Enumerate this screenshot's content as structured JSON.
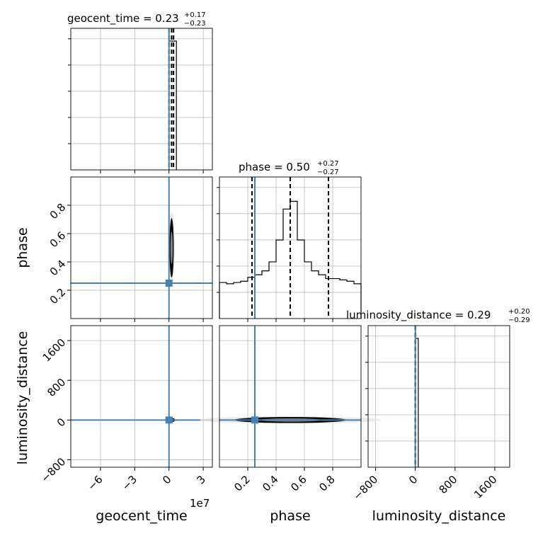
{
  "chart_data": {
    "type": "corner",
    "parameters": [
      "geocent_time",
      "phase",
      "luminosity_distance"
    ],
    "axis_labels": {
      "geocent_time": "geocent_time",
      "phase": "phase",
      "luminosity_distance": "luminosity_distance"
    },
    "offset_text": {
      "geocent_time": "1e7"
    },
    "titles": [
      {
        "param": "geocent_time",
        "prefix": "geocent_time = ",
        "median": "0.23",
        "plus": "+0.17",
        "minus": "−0.23"
      },
      {
        "param": "phase",
        "prefix": "phase = ",
        "median": "0.50",
        "plus": "+0.27",
        "minus": "−0.27"
      },
      {
        "param": "luminosity_distance",
        "prefix": "luminosity_distance = ",
        "median": "0.29",
        "plus": "+0.20",
        "minus": "−0.29"
      }
    ],
    "ranges": {
      "geocent_time": [
        -8.6,
        3.8
      ],
      "phase": [
        0.0,
        1.0
      ],
      "luminosity_distance": [
        -950,
        1900
      ]
    },
    "ticks": {
      "geocent_time": {
        "values": [
          -6,
          -3,
          0,
          3
        ],
        "labels": [
          "−6",
          "−3",
          "0",
          "3"
        ]
      },
      "phase": {
        "values": [
          0.2,
          0.4,
          0.6,
          0.8
        ],
        "labels": [
          "0.2",
          "0.4",
          "0.6",
          "0.8"
        ]
      },
      "luminosity_distance": {
        "values": [
          -800,
          0,
          800,
          1600
        ],
        "labels": [
          "−800",
          "0",
          "800",
          "1600"
        ]
      }
    },
    "truths": {
      "geocent_time": 0.0,
      "phase": 0.25,
      "luminosity_distance": 0.0
    },
    "quantiles": {
      "geocent_time": [
        0.0,
        0.23,
        0.4
      ],
      "phase": [
        0.23,
        0.5,
        0.77
      ],
      "luminosity_distance": [
        0.0,
        0.29,
        0.49
      ]
    },
    "histograms": {
      "geocent_time": {
        "edges": [
          0.0,
          0.65
        ],
        "counts": [
          1.0
        ]
      },
      "phase": {
        "edges": [
          0.0,
          0.05,
          0.1,
          0.15,
          0.2,
          0.25,
          0.3,
          0.35,
          0.4,
          0.45,
          0.5,
          0.55,
          0.6,
          0.65,
          0.7,
          0.75,
          0.8,
          0.85,
          0.9,
          0.95,
          1.0
        ],
        "counts": [
          0.28,
          0.27,
          0.28,
          0.29,
          0.32,
          0.34,
          0.37,
          0.44,
          0.61,
          0.85,
          0.91,
          0.61,
          0.44,
          0.37,
          0.34,
          0.31,
          0.31,
          0.3,
          0.29,
          0.27
        ]
      },
      "luminosity_distance": {
        "edges": [
          0.0,
          60.0
        ],
        "counts": [
          1.0
        ]
      }
    },
    "contours": {
      "phase_vs_geocent_time": {
        "center": [
          0.23,
          0.5
        ],
        "width": 0.22,
        "height": 0.42
      },
      "luminosity_distance_vs_geocent_time": {
        "center": [
          0.23,
          0.29
        ],
        "width": 0.6,
        "height": 40
      },
      "luminosity_distance_vs_phase": {
        "center": [
          0.5,
          0.29
        ],
        "width": 0.8,
        "height": 120
      }
    },
    "grid": true
  }
}
